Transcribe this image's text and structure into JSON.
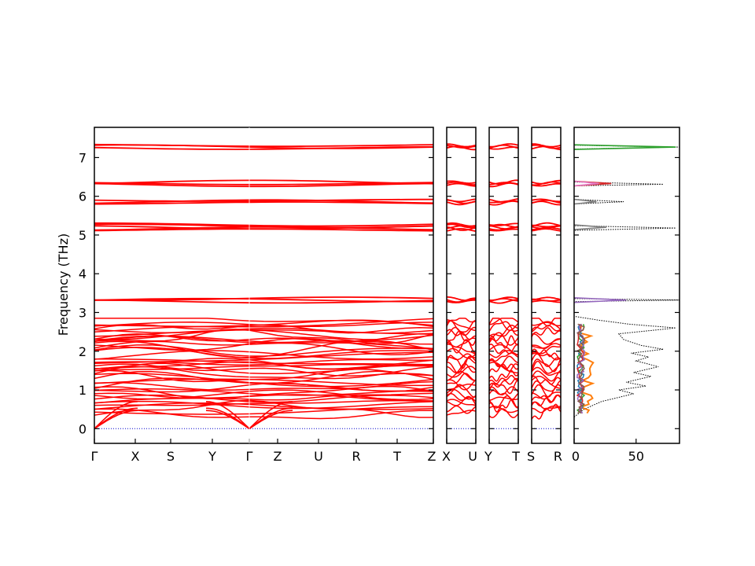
{
  "chart_data": {
    "type": "line",
    "title": "",
    "ylabel": "Frequency (THz)",
    "ylim": [
      -0.38,
      7.78
    ],
    "y_ticks": [
      "0",
      "1",
      "2",
      "3",
      "4",
      "5",
      "6",
      "7"
    ],
    "band_color": "#ff0000",
    "zero_line_color": "#0000cc",
    "segments": [
      {
        "labels": [
          "Γ",
          "X",
          "S",
          "Y",
          "Γ",
          "Z",
          "U",
          "R",
          "T",
          "Z"
        ],
        "break_after": [
          4
        ]
      },
      {
        "labels": [
          "X",
          "U"
        ]
      },
      {
        "labels": [
          "Y",
          "T"
        ]
      },
      {
        "labels": [
          "S",
          "R"
        ]
      }
    ],
    "flat_band_groups_THz": [
      {
        "center": 3.32,
        "count": 3
      },
      {
        "center": 5.2,
        "count": 5
      },
      {
        "center": 5.86,
        "count": 3
      },
      {
        "center": 6.33,
        "count": 3
      },
      {
        "center": 7.28,
        "count": 3
      }
    ],
    "dense_band_region_THz": [
      0.25,
      2.85
    ],
    "dos_panel": {
      "x_ticks": [
        "0",
        "50"
      ],
      "xlim": [
        0,
        85
      ],
      "total_color": "#000000",
      "partial_colors": [
        "#ff7f0e",
        "#1f77b4",
        "#2ca02c",
        "#d62728",
        "#9467bd",
        "#8c564b",
        "#e377c2",
        "#7f7f7f",
        "#bcbd22",
        "#17becf"
      ],
      "total_dos_points": [
        [
          0.3,
          0
        ],
        [
          0.5,
          8
        ],
        [
          0.7,
          22
        ],
        [
          0.9,
          48
        ],
        [
          1.0,
          36
        ],
        [
          1.1,
          58
        ],
        [
          1.2,
          42
        ],
        [
          1.35,
          62
        ],
        [
          1.45,
          48
        ],
        [
          1.6,
          68
        ],
        [
          1.75,
          50
        ],
        [
          1.85,
          60
        ],
        [
          1.95,
          46
        ],
        [
          2.05,
          72
        ],
        [
          2.15,
          54
        ],
        [
          2.3,
          40
        ],
        [
          2.45,
          36
        ],
        [
          2.6,
          82
        ],
        [
          2.7,
          44
        ],
        [
          2.8,
          20
        ],
        [
          2.9,
          0
        ],
        [
          3.28,
          0
        ],
        [
          3.32,
          85
        ],
        [
          3.36,
          0
        ],
        [
          5.12,
          0
        ],
        [
          5.18,
          82
        ],
        [
          5.24,
          0
        ],
        [
          5.8,
          0
        ],
        [
          5.86,
          40
        ],
        [
          5.92,
          0
        ],
        [
          6.27,
          0
        ],
        [
          6.31,
          72
        ],
        [
          6.37,
          0
        ],
        [
          7.22,
          0
        ],
        [
          7.27,
          85
        ],
        [
          7.32,
          0
        ]
      ],
      "partial_peaks": [
        {
          "series": 2,
          "y": 7.27,
          "value": 82
        },
        {
          "series": 3,
          "y": 6.33,
          "value": 30
        },
        {
          "series": 6,
          "y": 6.33,
          "value": 20
        },
        {
          "series": 4,
          "y": 3.32,
          "value": 42
        },
        {
          "series": 7,
          "y": 5.2,
          "value": 26
        },
        {
          "series": 7,
          "y": 5.86,
          "value": 18
        }
      ]
    }
  }
}
